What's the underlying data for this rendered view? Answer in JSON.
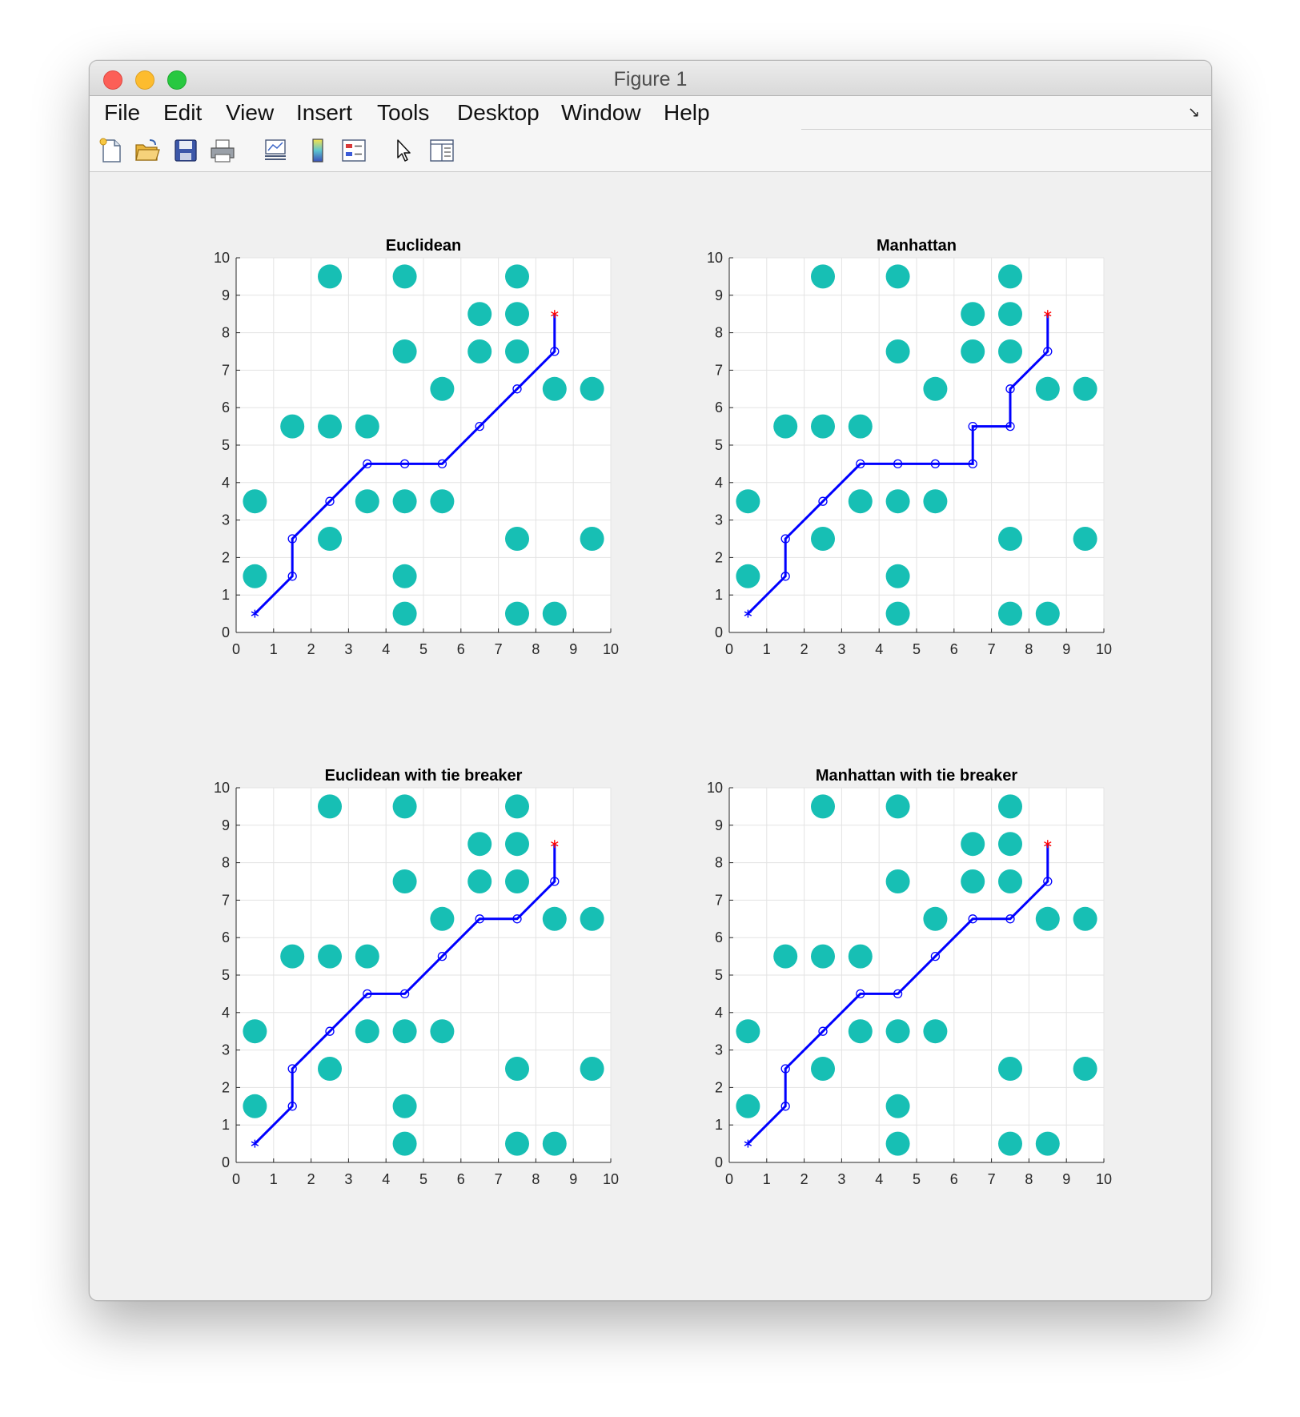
{
  "window": {
    "title": "Figure 1"
  },
  "menu": [
    "File",
    "Edit",
    "View",
    "Insert",
    "Tools",
    "Desktop",
    "Window",
    "Help"
  ],
  "toolbar": [
    {
      "name": "new-figure-icon"
    },
    {
      "name": "open-file-icon"
    },
    {
      "name": "save-icon"
    },
    {
      "name": "print-icon"
    },
    {
      "name": "link-plot-icon"
    },
    {
      "name": "insert-colorbar-icon"
    },
    {
      "name": "insert-legend-icon"
    },
    {
      "name": "edit-plot-arrow-icon"
    },
    {
      "name": "property-inspector-icon"
    }
  ],
  "colors": {
    "obstacle": "#17bfb4",
    "path": "#0000ff",
    "goal": "#ff0000",
    "grid": "#e3e3e3"
  },
  "chart_data": [
    {
      "type": "scatter",
      "title": "Euclidean",
      "xlim": [
        0,
        10
      ],
      "ylim": [
        0,
        10
      ],
      "xticks": [
        "0",
        "1",
        "2",
        "3",
        "4",
        "5",
        "6",
        "7",
        "8",
        "9",
        "10"
      ],
      "yticks": [
        "0",
        "1",
        "2",
        "3",
        "4",
        "5",
        "6",
        "7",
        "8",
        "9",
        "10"
      ],
      "grid": true,
      "obstacles": [
        [
          2.5,
          9.5
        ],
        [
          4.5,
          9.5
        ],
        [
          7.5,
          9.5
        ],
        [
          6.5,
          8.5
        ],
        [
          7.5,
          8.5
        ],
        [
          4.5,
          7.5
        ],
        [
          6.5,
          7.5
        ],
        [
          7.5,
          7.5
        ],
        [
          5.5,
          6.5
        ],
        [
          8.5,
          6.5
        ],
        [
          9.5,
          6.5
        ],
        [
          1.5,
          5.5
        ],
        [
          2.5,
          5.5
        ],
        [
          3.5,
          5.5
        ],
        [
          0.5,
          3.5
        ],
        [
          3.5,
          3.5
        ],
        [
          4.5,
          3.5
        ],
        [
          5.5,
          3.5
        ],
        [
          2.5,
          2.5
        ],
        [
          7.5,
          2.5
        ],
        [
          9.5,
          2.5
        ],
        [
          0.5,
          1.5
        ],
        [
          4.5,
          1.5
        ],
        [
          4.5,
          0.5
        ],
        [
          7.5,
          0.5
        ],
        [
          8.5,
          0.5
        ]
      ],
      "start": [
        0.5,
        0.5
      ],
      "goal": [
        8.5,
        8.5
      ],
      "path": [
        [
          0.5,
          0.5
        ],
        [
          1.5,
          1.5
        ],
        [
          1.5,
          2.5
        ],
        [
          2.5,
          3.5
        ],
        [
          3.5,
          4.5
        ],
        [
          4.5,
          4.5
        ],
        [
          5.5,
          4.5
        ],
        [
          6.5,
          5.5
        ],
        [
          7.5,
          6.5
        ],
        [
          8.5,
          7.5
        ],
        [
          8.5,
          8.5
        ]
      ]
    },
    {
      "type": "scatter",
      "title": "Manhattan",
      "xlim": [
        0,
        10
      ],
      "ylim": [
        0,
        10
      ],
      "xticks": [
        "0",
        "1",
        "2",
        "3",
        "4",
        "5",
        "6",
        "7",
        "8",
        "9",
        "10"
      ],
      "yticks": [
        "0",
        "1",
        "2",
        "3",
        "4",
        "5",
        "6",
        "7",
        "8",
        "9",
        "10"
      ],
      "grid": true,
      "obstacles": [
        [
          2.5,
          9.5
        ],
        [
          4.5,
          9.5
        ],
        [
          7.5,
          9.5
        ],
        [
          6.5,
          8.5
        ],
        [
          7.5,
          8.5
        ],
        [
          4.5,
          7.5
        ],
        [
          6.5,
          7.5
        ],
        [
          7.5,
          7.5
        ],
        [
          5.5,
          6.5
        ],
        [
          8.5,
          6.5
        ],
        [
          9.5,
          6.5
        ],
        [
          1.5,
          5.5
        ],
        [
          2.5,
          5.5
        ],
        [
          3.5,
          5.5
        ],
        [
          0.5,
          3.5
        ],
        [
          3.5,
          3.5
        ],
        [
          4.5,
          3.5
        ],
        [
          5.5,
          3.5
        ],
        [
          2.5,
          2.5
        ],
        [
          7.5,
          2.5
        ],
        [
          9.5,
          2.5
        ],
        [
          0.5,
          1.5
        ],
        [
          4.5,
          1.5
        ],
        [
          4.5,
          0.5
        ],
        [
          7.5,
          0.5
        ],
        [
          8.5,
          0.5
        ]
      ],
      "start": [
        0.5,
        0.5
      ],
      "goal": [
        8.5,
        8.5
      ],
      "path": [
        [
          0.5,
          0.5
        ],
        [
          1.5,
          1.5
        ],
        [
          1.5,
          2.5
        ],
        [
          2.5,
          3.5
        ],
        [
          3.5,
          4.5
        ],
        [
          4.5,
          4.5
        ],
        [
          5.5,
          4.5
        ],
        [
          6.5,
          4.5
        ],
        [
          6.5,
          5.5
        ],
        [
          7.5,
          5.5
        ],
        [
          7.5,
          6.5
        ],
        [
          8.5,
          7.5
        ],
        [
          8.5,
          8.5
        ]
      ]
    },
    {
      "type": "scatter",
      "title": "Euclidean with tie breaker",
      "xlim": [
        0,
        10
      ],
      "ylim": [
        0,
        10
      ],
      "xticks": [
        "0",
        "1",
        "2",
        "3",
        "4",
        "5",
        "6",
        "7",
        "8",
        "9",
        "10"
      ],
      "yticks": [
        "0",
        "1",
        "2",
        "3",
        "4",
        "5",
        "6",
        "7",
        "8",
        "9",
        "10"
      ],
      "grid": true,
      "obstacles": [
        [
          2.5,
          9.5
        ],
        [
          4.5,
          9.5
        ],
        [
          7.5,
          9.5
        ],
        [
          6.5,
          8.5
        ],
        [
          7.5,
          8.5
        ],
        [
          4.5,
          7.5
        ],
        [
          6.5,
          7.5
        ],
        [
          7.5,
          7.5
        ],
        [
          5.5,
          6.5
        ],
        [
          8.5,
          6.5
        ],
        [
          9.5,
          6.5
        ],
        [
          1.5,
          5.5
        ],
        [
          2.5,
          5.5
        ],
        [
          3.5,
          5.5
        ],
        [
          0.5,
          3.5
        ],
        [
          3.5,
          3.5
        ],
        [
          4.5,
          3.5
        ],
        [
          5.5,
          3.5
        ],
        [
          2.5,
          2.5
        ],
        [
          7.5,
          2.5
        ],
        [
          9.5,
          2.5
        ],
        [
          0.5,
          1.5
        ],
        [
          4.5,
          1.5
        ],
        [
          4.5,
          0.5
        ],
        [
          7.5,
          0.5
        ],
        [
          8.5,
          0.5
        ]
      ],
      "start": [
        0.5,
        0.5
      ],
      "goal": [
        8.5,
        8.5
      ],
      "path": [
        [
          0.5,
          0.5
        ],
        [
          1.5,
          1.5
        ],
        [
          1.5,
          2.5
        ],
        [
          2.5,
          3.5
        ],
        [
          3.5,
          4.5
        ],
        [
          4.5,
          4.5
        ],
        [
          5.5,
          5.5
        ],
        [
          6.5,
          6.5
        ],
        [
          7.5,
          6.5
        ],
        [
          8.5,
          7.5
        ],
        [
          8.5,
          8.5
        ]
      ]
    },
    {
      "type": "scatter",
      "title": "Manhattan with tie breaker",
      "xlim": [
        0,
        10
      ],
      "ylim": [
        0,
        10
      ],
      "xticks": [
        "0",
        "1",
        "2",
        "3",
        "4",
        "5",
        "6",
        "7",
        "8",
        "9",
        "10"
      ],
      "yticks": [
        "0",
        "1",
        "2",
        "3",
        "4",
        "5",
        "6",
        "7",
        "8",
        "9",
        "10"
      ],
      "grid": true,
      "obstacles": [
        [
          2.5,
          9.5
        ],
        [
          4.5,
          9.5
        ],
        [
          7.5,
          9.5
        ],
        [
          6.5,
          8.5
        ],
        [
          7.5,
          8.5
        ],
        [
          4.5,
          7.5
        ],
        [
          6.5,
          7.5
        ],
        [
          7.5,
          7.5
        ],
        [
          5.5,
          6.5
        ],
        [
          8.5,
          6.5
        ],
        [
          9.5,
          6.5
        ],
        [
          1.5,
          5.5
        ],
        [
          2.5,
          5.5
        ],
        [
          3.5,
          5.5
        ],
        [
          0.5,
          3.5
        ],
        [
          3.5,
          3.5
        ],
        [
          4.5,
          3.5
        ],
        [
          5.5,
          3.5
        ],
        [
          2.5,
          2.5
        ],
        [
          7.5,
          2.5
        ],
        [
          9.5,
          2.5
        ],
        [
          0.5,
          1.5
        ],
        [
          4.5,
          1.5
        ],
        [
          4.5,
          0.5
        ],
        [
          7.5,
          0.5
        ],
        [
          8.5,
          0.5
        ]
      ],
      "start": [
        0.5,
        0.5
      ],
      "goal": [
        8.5,
        8.5
      ],
      "path": [
        [
          0.5,
          0.5
        ],
        [
          1.5,
          1.5
        ],
        [
          1.5,
          2.5
        ],
        [
          2.5,
          3.5
        ],
        [
          3.5,
          4.5
        ],
        [
          4.5,
          4.5
        ],
        [
          5.5,
          5.5
        ],
        [
          6.5,
          6.5
        ],
        [
          7.5,
          6.5
        ],
        [
          8.5,
          7.5
        ],
        [
          8.5,
          8.5
        ]
      ]
    }
  ]
}
